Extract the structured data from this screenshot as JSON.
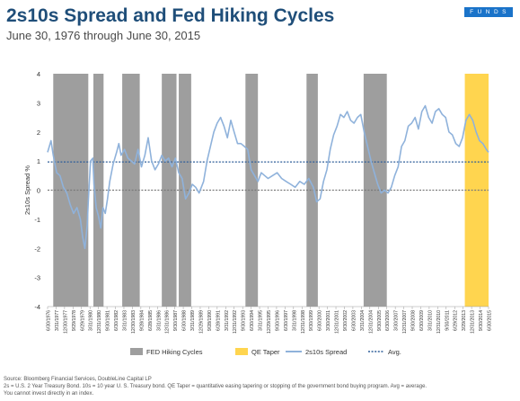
{
  "header": {
    "title": "2s10s Spread and Fed Hiking Cycles",
    "subtitle": "June 30, 1976 through June 30, 2015",
    "brand": "FUNDS"
  },
  "footnotes": [
    "Source: Bloomberg Financial Services, DoubleLine Capital LP",
    "2s = U.S. 2 Year Treasury Bond. 10s = 10 year U. S. Treasury bond. QE Taper = quantitative easing tapering or stopping of the government bond buying program. Avg = average.",
    "You cannot invest directly in an index."
  ],
  "colors": {
    "hiking": "#9e9e9e",
    "taper": "#ffd54f",
    "spread": "#8fb2db",
    "avg": "#2f5f9a",
    "zero": "#7a7a7a"
  },
  "chart_data": {
    "type": "line",
    "title": "2s10s Spread and Fed Hiking Cycles",
    "subtitle": "June 30, 1976 through June 30, 2015",
    "ylabel": "2s10s Spread %",
    "xlabel": "",
    "ylim": [
      -4,
      4
    ],
    "yticks": [
      -4,
      -3,
      -2,
      -1,
      0,
      1,
      2,
      3,
      4
    ],
    "xlim": [
      "6/30/1976",
      "6/30/2015"
    ],
    "xticks": [
      "6/30/1976",
      "3/31/1977",
      "12/30/1977",
      "9/29/1978",
      "6/29/1979",
      "3/31/1980",
      "12/31/1980",
      "9/30/1981",
      "6/30/1982",
      "3/31/1983",
      "12/30/1983",
      "9/28/1984",
      "6/28/1985",
      "3/31/1986",
      "12/31/1986",
      "9/30/1987",
      "6/30/1988",
      "3/31/1989",
      "12/29/1989",
      "9/28/1990",
      "6/28/1991",
      "3/31/1992",
      "12/31/1992",
      "9/30/1993",
      "6/30/1994",
      "3/31/1995",
      "12/29/1995",
      "9/30/1996",
      "6/30/1997",
      "3/31/1998",
      "12/31/1998",
      "9/30/1999",
      "6/30/2000",
      "3/30/2001",
      "12/31/2001",
      "9/30/2002",
      "6/30/2003",
      "3/31/2004",
      "12/31/2004",
      "9/30/2005",
      "6/30/2006",
      "3/30/2007",
      "12/31/2007",
      "9/30/2008",
      "6/30/2009",
      "3/31/2010",
      "12/31/2010",
      "9/30/2011",
      "6/29/2012",
      "3/29/2013",
      "12/31/2013",
      "9/30/2014",
      "6/30/2015"
    ],
    "legend": [
      "FED Hiking Cycles",
      "QE Taper",
      "2s10s Spread",
      "Avg."
    ],
    "legend_position": "bottom",
    "hiking_cycles": [
      {
        "start": 1977.0,
        "end": 1980.1
      },
      {
        "start": 1980.55,
        "end": 1981.45
      },
      {
        "start": 1983.1,
        "end": 1984.65
      },
      {
        "start": 1986.6,
        "end": 1987.9
      },
      {
        "start": 1988.1,
        "end": 1989.2
      },
      {
        "start": 1994.0,
        "end": 1995.1
      },
      {
        "start": 1999.4,
        "end": 2000.4
      },
      {
        "start": 2004.45,
        "end": 2006.5
      }
    ],
    "qe_taper": [
      {
        "start": 2013.4,
        "end": 2015.5
      }
    ],
    "average": 0.97,
    "series": [
      {
        "name": "2s10s Spread",
        "x": [
          1976.5,
          1976.8,
          1977.0,
          1977.3,
          1977.6,
          1977.9,
          1978.2,
          1978.5,
          1978.8,
          1979.1,
          1979.4,
          1979.6,
          1979.8,
          1980.0,
          1980.1,
          1980.3,
          1980.5,
          1980.6,
          1980.8,
          1981.0,
          1981.2,
          1981.4,
          1981.6,
          1981.8,
          1982.0,
          1982.3,
          1982.6,
          1982.8,
          1983.0,
          1983.3,
          1983.6,
          1983.9,
          1984.2,
          1984.5,
          1984.8,
          1985.1,
          1985.4,
          1985.7,
          1986.0,
          1986.3,
          1986.6,
          1986.9,
          1987.2,
          1987.5,
          1987.8,
          1988.1,
          1988.4,
          1988.7,
          1989.0,
          1989.3,
          1989.6,
          1989.9,
          1990.3,
          1990.6,
          1990.9,
          1991.2,
          1991.5,
          1991.8,
          1992.1,
          1992.4,
          1992.7,
          1993.0,
          1993.3,
          1993.6,
          1993.9,
          1994.2,
          1994.5,
          1994.8,
          1995.1,
          1995.4,
          1995.7,
          1996.0,
          1996.4,
          1996.8,
          1997.2,
          1997.6,
          1998.0,
          1998.4,
          1998.8,
          1999.2,
          1999.6,
          2000.0,
          2000.3,
          2000.6,
          2000.9,
          2001.2,
          2001.5,
          2001.8,
          2002.1,
          2002.4,
          2002.7,
          2003.0,
          2003.3,
          2003.6,
          2003.9,
          2004.2,
          2004.5,
          2004.8,
          2005.1,
          2005.4,
          2005.7,
          2006.0,
          2006.3,
          2006.6,
          2006.9,
          2007.2,
          2007.5,
          2007.8,
          2008.1,
          2008.4,
          2008.7,
          2009.0,
          2009.3,
          2009.6,
          2009.9,
          2010.2,
          2010.5,
          2010.8,
          2011.1,
          2011.4,
          2011.7,
          2012.0,
          2012.3,
          2012.6,
          2012.9,
          2013.2,
          2013.5,
          2013.8,
          2014.1,
          2014.4,
          2014.7,
          2015.0,
          2015.3,
          2015.5
        ],
        "y": [
          1.3,
          1.7,
          1.2,
          0.6,
          0.5,
          0.1,
          -0.1,
          -0.5,
          -0.8,
          -0.6,
          -1.0,
          -1.6,
          -2.0,
          -1.2,
          -0.4,
          1.0,
          1.1,
          0.2,
          -0.6,
          -0.9,
          -1.3,
          -0.6,
          -0.8,
          -0.3,
          0.3,
          0.9,
          1.3,
          1.6,
          1.2,
          1.4,
          1.1,
          1.0,
          0.9,
          1.4,
          0.8,
          1.2,
          1.8,
          1.0,
          0.7,
          0.9,
          1.2,
          1.0,
          1.1,
          0.8,
          1.1,
          0.6,
          0.4,
          -0.3,
          -0.1,
          0.2,
          0.1,
          -0.1,
          0.3,
          1.0,
          1.5,
          2.0,
          2.3,
          2.5,
          2.2,
          1.8,
          2.4,
          2.0,
          1.6,
          1.6,
          1.5,
          1.4,
          0.7,
          0.5,
          0.3,
          0.6,
          0.5,
          0.4,
          0.5,
          0.6,
          0.4,
          0.3,
          0.2,
          0.1,
          0.3,
          0.2,
          0.4,
          0.1,
          -0.4,
          -0.3,
          0.3,
          0.7,
          1.4,
          1.9,
          2.2,
          2.6,
          2.5,
          2.7,
          2.4,
          2.3,
          2.5,
          2.6,
          2.0,
          1.5,
          1.0,
          0.6,
          0.2,
          -0.1,
          0.0,
          -0.1,
          0.1,
          0.5,
          0.8,
          1.5,
          1.7,
          2.2,
          2.3,
          2.5,
          2.1,
          2.7,
          2.9,
          2.5,
          2.3,
          2.7,
          2.8,
          2.6,
          2.5,
          2.0,
          1.9,
          1.6,
          1.5,
          1.8,
          2.4,
          2.6,
          2.4,
          2.0,
          1.7,
          1.6,
          1.4,
          1.3
        ]
      }
    ]
  }
}
